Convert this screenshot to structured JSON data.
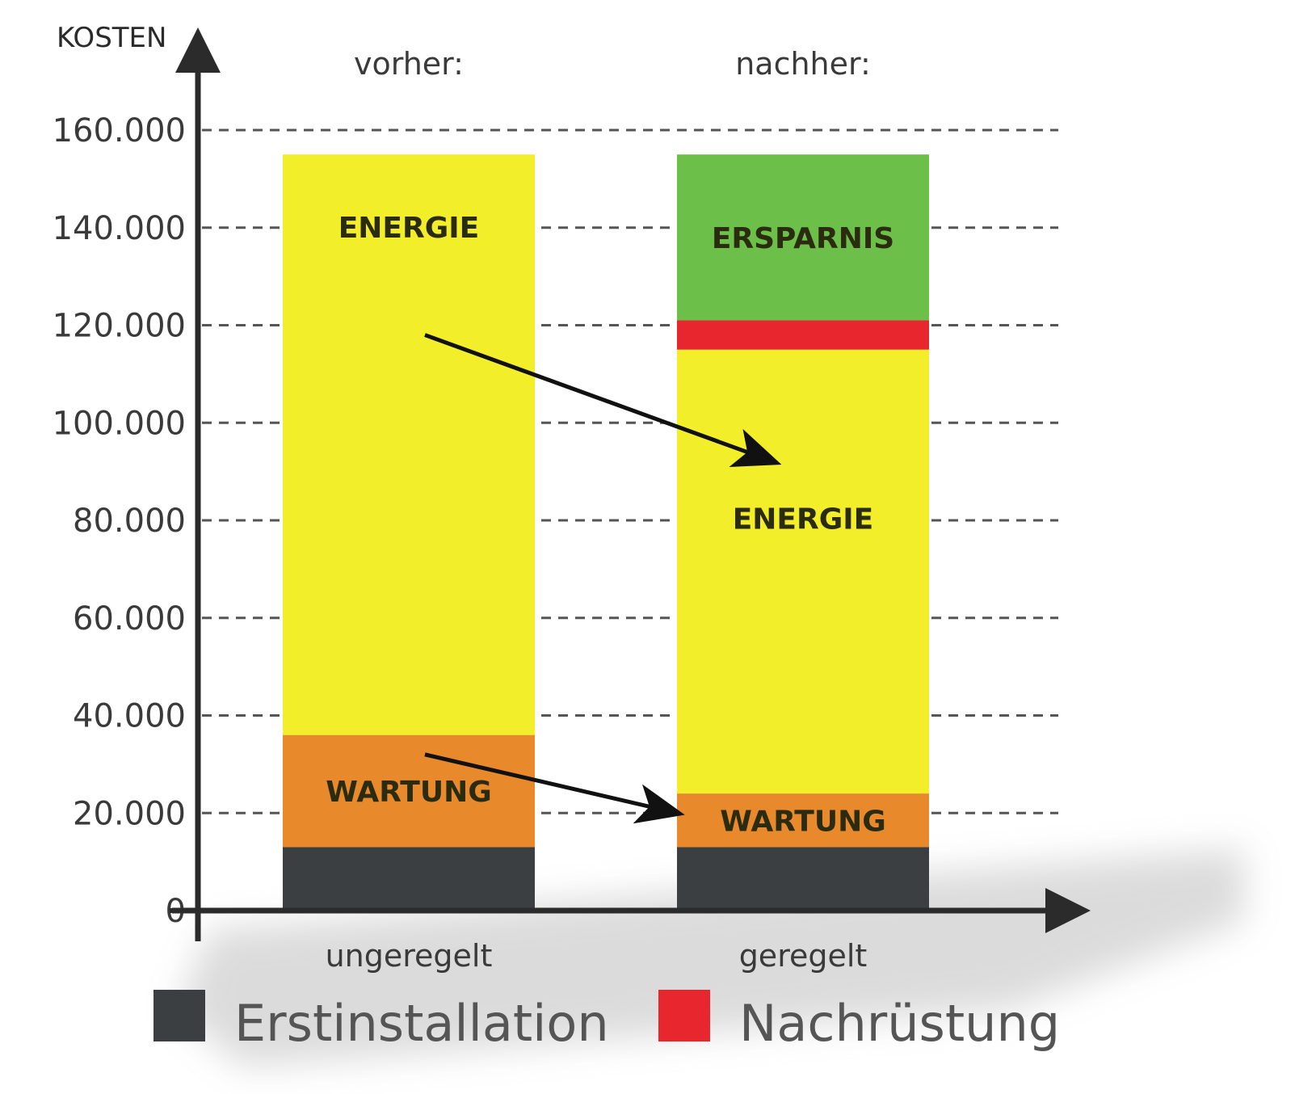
{
  "chart_data": {
    "type": "bar",
    "stacked": true,
    "ylabel": "KOSTEN",
    "ylim": [
      0,
      160000
    ],
    "yticks": [
      "0",
      "20.000",
      "40.000",
      "60.000",
      "80.000",
      "100.000",
      "120.000",
      "140.000",
      "160.000"
    ],
    "ytick_values": [
      0,
      20000,
      40000,
      60000,
      80000,
      100000,
      120000,
      140000,
      160000
    ],
    "grid": "dashed horizontal",
    "column_headers": [
      "vorher:",
      "nachher:"
    ],
    "categories": [
      "ungeregelt",
      "geregelt"
    ],
    "bars": [
      {
        "category": "ungeregelt",
        "header": "vorher:",
        "segments": [
          {
            "key": "erstinstallation",
            "label": "",
            "from": 0,
            "to": 13000,
            "color": "#3b3f42"
          },
          {
            "key": "wartung",
            "label": "WARTUNG",
            "from": 13000,
            "to": 36000,
            "color": "#e8892c"
          },
          {
            "key": "energie",
            "label": "ENERGIE",
            "from": 36000,
            "to": 155000,
            "color": "#f2ef2a"
          }
        ]
      },
      {
        "category": "geregelt",
        "header": "nachher:",
        "segments": [
          {
            "key": "erstinstallation",
            "label": "",
            "from": 0,
            "to": 13000,
            "color": "#3b3f42"
          },
          {
            "key": "wartung",
            "label": "WARTUNG",
            "from": 13000,
            "to": 24000,
            "color": "#e8892c"
          },
          {
            "key": "energie",
            "label": "ENERGIE",
            "from": 24000,
            "to": 115000,
            "color": "#f2ef2a"
          },
          {
            "key": "nachruestung",
            "label": "",
            "from": 115000,
            "to": 121000,
            "color": "#e8262e"
          },
          {
            "key": "ersparnis",
            "label": "ERSPARNIS",
            "from": 121000,
            "to": 155000,
            "color": "#6cc04a"
          }
        ]
      }
    ],
    "arrows": [
      {
        "from_bar": "ungeregelt",
        "from_value": 118000,
        "to_bar": "geregelt",
        "to_value": 92000
      },
      {
        "from_bar": "ungeregelt",
        "from_value": 32000,
        "to_bar": "geregelt",
        "to_value": 20000
      }
    ],
    "legend": [
      {
        "name": "Erstinstallation",
        "color": "#3b3f42"
      },
      {
        "name": "Nachrüstung",
        "color": "#e8262e"
      }
    ],
    "legend_position": "bottom"
  }
}
